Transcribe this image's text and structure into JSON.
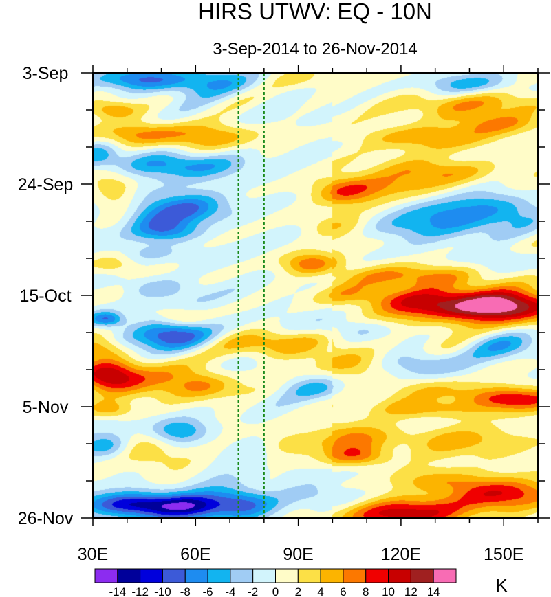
{
  "chart_data": {
    "type": "heatmap",
    "title": "HIRS UTWV: EQ - 10N",
    "subtitle": "3-Sep-2014 to 26-Nov-2014",
    "unit_label": "K",
    "x_axis": {
      "range": [
        30,
        160
      ],
      "major_ticks": [
        30,
        60,
        90,
        120,
        150
      ],
      "tick_labels": [
        "30E",
        "60E",
        "90E",
        "120E",
        "150E"
      ],
      "minor_step": 10
    },
    "y_axis": {
      "range_days": [
        0,
        84
      ],
      "major_ticks_days": [
        0,
        21,
        42,
        63,
        84
      ],
      "tick_labels": [
        "3-Sep",
        "24-Sep",
        "15-Oct",
        "5-Nov",
        "26-Nov"
      ],
      "minor_step_days": 7
    },
    "reference_lines": {
      "longitudes": [
        72.5,
        80
      ],
      "color": "#1a8a1a",
      "style": "dashed"
    },
    "colorbar": {
      "levels": [
        -14,
        -12,
        -10,
        -8,
        -6,
        -4,
        -2,
        0,
        2,
        4,
        6,
        8,
        10,
        12,
        14
      ],
      "level_labels": [
        "-14",
        "-12",
        "-10",
        "-8",
        "-6",
        "-4",
        "-2",
        "0",
        "2",
        "4",
        "6",
        "8",
        "10",
        "12",
        "14"
      ],
      "colors": [
        "#8c2cf0",
        "#00009a",
        "#0000dc",
        "#3c5ad8",
        "#1e8cf0",
        "#12b4f0",
        "#a0ccf4",
        "#d2f4fc",
        "#fffcc8",
        "#fce046",
        "#fcb400",
        "#fc7800",
        "#f00000",
        "#c80000",
        "#a02020",
        "#f86cb4"
      ]
    },
    "features": [
      {
        "lon": 58,
        "day": 1.5,
        "v": -6.5,
        "sx": 12,
        "sy": 1.8
      },
      {
        "lon": 42,
        "day": 1.2,
        "v": -5,
        "sx": 8,
        "sy": 1.3
      },
      {
        "lon": 36,
        "day": 7.0,
        "v": 5.5,
        "sx": 5,
        "sy": 1.2
      },
      {
        "lon": 62,
        "day": 12.0,
        "v": 6.5,
        "sx": 12,
        "sy": 1.8
      },
      {
        "lon": 42,
        "day": 11.5,
        "v": 4.5,
        "sx": 8,
        "sy": 1.5
      },
      {
        "lon": 55,
        "day": 17.5,
        "v": -6.5,
        "sx": 12,
        "sy": 1.6
      },
      {
        "lon": 32,
        "day": 15.5,
        "v": -4.5,
        "sx": 4,
        "sy": 1.6
      },
      {
        "lon": 37,
        "day": 23.5,
        "v": 5.5,
        "sx": 5,
        "sy": 3.2
      },
      {
        "lon": 57,
        "day": 25.5,
        "v": -7.5,
        "sx": 9,
        "sy": 2.0
      },
      {
        "lon": 53,
        "day": 30.0,
        "v": -6,
        "sx": 7,
        "sy": 1.6
      },
      {
        "lon": 44,
        "day": 27.0,
        "v": -4,
        "sx": 7,
        "sy": 2.0
      },
      {
        "lon": 48,
        "day": 34.0,
        "v": -2.8,
        "sx": 9,
        "sy": 1.2
      },
      {
        "lon": 37,
        "day": 36.5,
        "v": 3.5,
        "sx": 5,
        "sy": 1.5
      },
      {
        "lon": 48,
        "day": 40.5,
        "v": -4,
        "sx": 7,
        "sy": 1.5
      },
      {
        "lon": 34,
        "day": 46.5,
        "v": -8,
        "sx": 3.5,
        "sy": 1.0
      },
      {
        "lon": 55,
        "day": 46.0,
        "v": 3.5,
        "sx": 5,
        "sy": 1.2
      },
      {
        "lon": 53,
        "day": 49.5,
        "v": -9,
        "sx": 8,
        "sy": 1.8
      },
      {
        "lon": 32,
        "day": 52.0,
        "v": 5,
        "sx": 5,
        "sy": 1.5
      },
      {
        "lon": 34,
        "day": 57.0,
        "v": 10,
        "sx": 6,
        "sy": 2.2
      },
      {
        "lon": 48,
        "day": 58.0,
        "v": 6.5,
        "sx": 13,
        "sy": 2.4
      },
      {
        "lon": 63,
        "day": 59.0,
        "v": 3.5,
        "sx": 6,
        "sy": 1.8
      },
      {
        "lon": 35,
        "day": 63.5,
        "v": 5,
        "sx": 5,
        "sy": 1.2
      },
      {
        "lon": 55,
        "day": 67.5,
        "v": -6,
        "sx": 6,
        "sy": 1.6
      },
      {
        "lon": 34,
        "day": 70.5,
        "v": -5.5,
        "sx": 5,
        "sy": 1.6
      },
      {
        "lon": 47,
        "day": 72.0,
        "v": 4,
        "sx": 7,
        "sy": 2.0
      },
      {
        "lon": 43,
        "day": 81.5,
        "v": -12,
        "sx": 11,
        "sy": 1.6
      },
      {
        "lon": 61,
        "day": 82.0,
        "v": -8,
        "sx": 9,
        "sy": 1.8
      },
      {
        "lon": 74,
        "day": 81.0,
        "v": -7,
        "sx": 6,
        "sy": 1.8
      },
      {
        "lon": 90,
        "day": 1.0,
        "v": 2.5,
        "sx": 7,
        "sy": 1.5
      },
      {
        "lon": 140,
        "day": 6.0,
        "v": 4.5,
        "sx": 18,
        "sy": 1.6
      },
      {
        "lon": 148,
        "day": 9.5,
        "v": 5,
        "sx": 10,
        "sy": 1.4
      },
      {
        "lon": 125,
        "day": 12.0,
        "v": 5,
        "sx": 14,
        "sy": 1.6
      },
      {
        "lon": 140,
        "day": 2.0,
        "v": -4.5,
        "sx": 10,
        "sy": 1.4
      },
      {
        "lon": 103,
        "day": 22.5,
        "v": 6.5,
        "sx": 7,
        "sy": 1.8
      },
      {
        "lon": 128,
        "day": 18.5,
        "v": 5,
        "sx": 12,
        "sy": 1.6
      },
      {
        "lon": 113,
        "day": 21.0,
        "v": 3.5,
        "sx": 10,
        "sy": 1.5
      },
      {
        "lon": 135,
        "day": 27.5,
        "v": -7,
        "sx": 12,
        "sy": 2.2
      },
      {
        "lon": 150,
        "day": 25.5,
        "v": -5,
        "sx": 8,
        "sy": 2.0
      },
      {
        "lon": 99,
        "day": 28.5,
        "v": 3,
        "sx": 7,
        "sy": 1.6
      },
      {
        "lon": 120,
        "day": 29.5,
        "v": -3,
        "sx": 8,
        "sy": 1.6
      },
      {
        "lon": 94,
        "day": 36.0,
        "v": 7,
        "sx": 6,
        "sy": 1.5
      },
      {
        "lon": 124,
        "day": 38.5,
        "v": 6.5,
        "sx": 14,
        "sy": 1.5
      },
      {
        "lon": 148,
        "day": 35.0,
        "v": -3,
        "sx": 9,
        "sy": 1.4
      },
      {
        "lon": 134,
        "day": 44.0,
        "v": 10,
        "sx": 14,
        "sy": 2.2
      },
      {
        "lon": 152,
        "day": 44.0,
        "v": 10.5,
        "sx": 11,
        "sy": 2.0
      },
      {
        "lon": 110,
        "day": 42.0,
        "v": 4.5,
        "sx": 12,
        "sy": 1.5
      },
      {
        "lon": 82,
        "day": 51.0,
        "v": 6,
        "sx": 12,
        "sy": 1.8
      },
      {
        "lon": 107,
        "day": 48.5,
        "v": -3,
        "sx": 8,
        "sy": 1.5
      },
      {
        "lon": 126,
        "day": 55.0,
        "v": -5,
        "sx": 9,
        "sy": 1.8
      },
      {
        "lon": 150,
        "day": 51.5,
        "v": -5,
        "sx": 8,
        "sy": 2.0
      },
      {
        "lon": 103,
        "day": 54.5,
        "v": 4,
        "sx": 8,
        "sy": 1.8
      },
      {
        "lon": 153,
        "day": 61.5,
        "v": 9,
        "sx": 10,
        "sy": 1.6
      },
      {
        "lon": 132,
        "day": 60.0,
        "v": 3,
        "sx": 10,
        "sy": 1.5
      },
      {
        "lon": 128,
        "day": 63.5,
        "v": 5,
        "sx": 10,
        "sy": 1.3
      },
      {
        "lon": 95,
        "day": 59.5,
        "v": -4,
        "sx": 6,
        "sy": 1.5
      },
      {
        "lon": 103,
        "day": 68.5,
        "v": 5,
        "sx": 8,
        "sy": 2.0
      },
      {
        "lon": 135,
        "day": 69.5,
        "v": 4.5,
        "sx": 15,
        "sy": 2.0
      },
      {
        "lon": 108,
        "day": 72.5,
        "v": 6.5,
        "sx": 7,
        "sy": 1.4
      },
      {
        "lon": 88,
        "day": 70.0,
        "v": 3.5,
        "sx": 6,
        "sy": 1.5
      },
      {
        "lon": 120,
        "day": 83.0,
        "v": 10,
        "sx": 14,
        "sy": 2.0
      },
      {
        "lon": 150,
        "day": 79.5,
        "v": 8.5,
        "sx": 11,
        "sy": 2.0
      },
      {
        "lon": 132,
        "day": 77.0,
        "v": 4,
        "sx": 9,
        "sy": 1.5
      },
      {
        "lon": 99,
        "day": 80.5,
        "v": -3.5,
        "sx": 9,
        "sy": 1.8
      }
    ]
  }
}
